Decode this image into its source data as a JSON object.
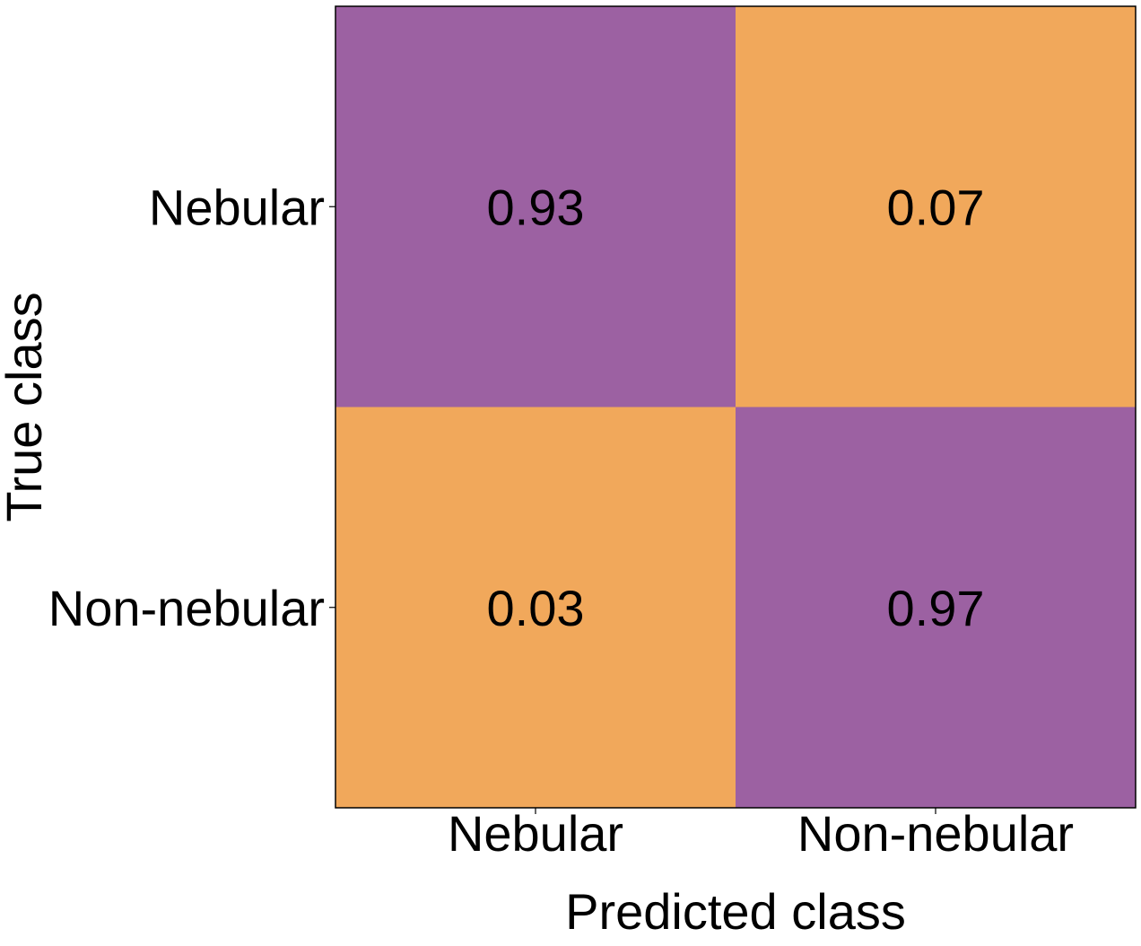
{
  "chart_data": {
    "type": "heatmap",
    "title": "",
    "xlabel": "Predicted class",
    "ylabel": "True class",
    "x_categories": [
      "Nebular",
      "Non-nebular"
    ],
    "y_categories": [
      "Nebular",
      "Non-nebular"
    ],
    "values": [
      [
        0.93,
        0.07
      ],
      [
        0.03,
        0.97
      ]
    ],
    "value_labels": [
      [
        "0.93",
        "0.07"
      ],
      [
        "0.03",
        "0.97"
      ]
    ],
    "colors": {
      "high": "#9c61a2",
      "low": "#f1a85b",
      "frame": "#000000",
      "text": "#000000"
    },
    "grid": false,
    "legend": "none"
  }
}
